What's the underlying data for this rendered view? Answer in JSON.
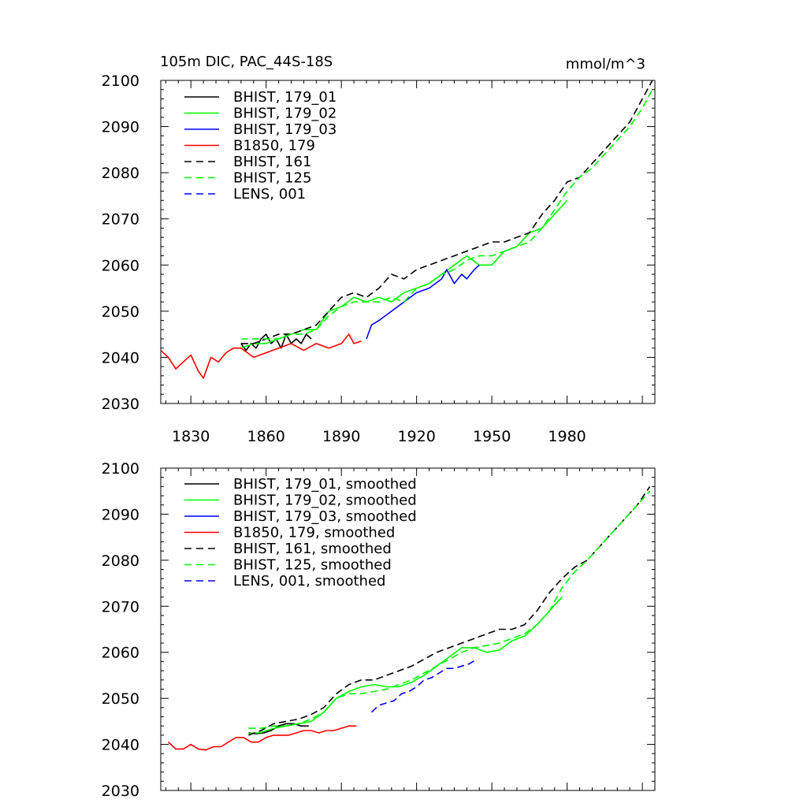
{
  "header": {
    "title": "105m DIC, PAC_44S-18S",
    "units": "mmol/m^3"
  },
  "chart_data": [
    {
      "type": "line",
      "title": "105m DIC, PAC_44S-18S",
      "units_label": "mmol/m^3",
      "xlim": [
        1818,
        2015
      ],
      "ylim": [
        2030,
        2100
      ],
      "xticks": [
        1830,
        1860,
        1890,
        1920,
        1950,
        1980
      ],
      "yticks": [
        2030,
        2040,
        2050,
        2060,
        2070,
        2080,
        2090,
        2100
      ],
      "legend_position": "top-left",
      "series": [
        {
          "name": "BHIST, 179_01",
          "color": "#000000",
          "dash": "solid",
          "x": [
            1850,
            1852,
            1854,
            1856,
            1858,
            1860,
            1862,
            1864,
            1866,
            1868,
            1870,
            1872,
            1874,
            1876,
            1878
          ],
          "y": [
            2043,
            2041.5,
            2043,
            2042,
            2044,
            2045,
            2043,
            2044,
            2042,
            2045,
            2043,
            2044,
            2043,
            2045,
            2044
          ]
        },
        {
          "name": "BHIST, 179_02",
          "color": "#00ff00",
          "dash": "solid",
          "x": [
            1850,
            1855,
            1860,
            1865,
            1870,
            1875,
            1880,
            1885,
            1890,
            1895,
            1900,
            1905,
            1910,
            1915,
            1920,
            1925,
            1930,
            1935,
            1940,
            1945,
            1950,
            1955,
            1960,
            1965,
            1970,
            1975,
            1980
          ],
          "y": [
            2042,
            2043,
            2043,
            2044,
            2045,
            2046,
            2046,
            2050,
            2051,
            2053,
            2052,
            2053,
            2052,
            2054,
            2055,
            2056,
            2058,
            2060,
            2062,
            2060,
            2060,
            2063,
            2064,
            2067,
            2068,
            2071,
            2074
          ]
        },
        {
          "name": "BHIST, 179_03",
          "color": "#0000ff",
          "dash": "solid",
          "x": [
            1900,
            1902,
            1905,
            1910,
            1915,
            1920,
            1925,
            1930,
            1932,
            1935,
            1938,
            1940,
            1943,
            1945
          ],
          "y": [
            2044,
            2047,
            2048,
            2050,
            2052,
            2054,
            2055,
            2057,
            2059,
            2056,
            2058,
            2057,
            2059,
            2060
          ]
        },
        {
          "name": "B1850, 179",
          "color": "#ff0000",
          "dash": "solid",
          "x": [
            1818,
            1821,
            1824,
            1827,
            1830,
            1833,
            1835,
            1838,
            1841,
            1844,
            1847,
            1850,
            1855,
            1860,
            1865,
            1870,
            1875,
            1880,
            1885,
            1890,
            1893,
            1895,
            1898
          ],
          "y": [
            2041.5,
            2040,
            2037.5,
            2039,
            2040.5,
            2037,
            2035.5,
            2040,
            2039,
            2041,
            2042,
            2042,
            2040,
            2041,
            2042,
            2043,
            2041.5,
            2043,
            2042,
            2043,
            2045,
            2043,
            2043.5
          ]
        },
        {
          "name": "BHIST, 161",
          "color": "#000000",
          "dash": "dashed",
          "x": [
            1850,
            1855,
            1860,
            1865,
            1870,
            1875,
            1880,
            1885,
            1890,
            1895,
            1900,
            1905,
            1910,
            1915,
            1920,
            1925,
            1930,
            1935,
            1940,
            1945,
            1950,
            1955,
            1960,
            1965,
            1970,
            1975,
            1980,
            1985,
            1990,
            1995,
            2000,
            2005,
            2010,
            2014
          ],
          "y": [
            2043,
            2043,
            2044,
            2045,
            2045,
            2046,
            2047,
            2050,
            2053,
            2054,
            2053,
            2055,
            2058,
            2057,
            2059,
            2060,
            2061,
            2062,
            2063,
            2064,
            2065,
            2065,
            2066,
            2067,
            2071,
            2074,
            2078,
            2079,
            2082,
            2085,
            2088,
            2091,
            2096,
            2100
          ]
        },
        {
          "name": "BHIST, 125",
          "color": "#00ff00",
          "dash": "dashed",
          "x": [
            1850,
            1855,
            1860,
            1865,
            1870,
            1875,
            1880,
            1885,
            1890,
            1895,
            1900,
            1905,
            1910,
            1915,
            1920,
            1925,
            1930,
            1935,
            1940,
            1945,
            1950,
            1955,
            1960,
            1965,
            1970,
            1975,
            1980,
            1985,
            1990,
            1995,
            2000,
            2005,
            2010,
            2014
          ],
          "y": [
            2044,
            2044,
            2044,
            2044,
            2045,
            2045,
            2046,
            2049,
            2051,
            2052,
            2052,
            2052,
            2053,
            2052,
            2055,
            2056,
            2058,
            2059,
            2061,
            2062,
            2062,
            2063,
            2064,
            2065,
            2068,
            2072,
            2076,
            2079,
            2081,
            2084,
            2087,
            2090,
            2094,
            2098
          ]
        },
        {
          "name": "LENS, 001",
          "color": "#0000ff",
          "dash": "dashed",
          "x": [],
          "y": []
        }
      ]
    },
    {
      "type": "line",
      "xlim": [
        1818,
        2015
      ],
      "ylim": [
        2030,
        2100
      ],
      "yticks": [
        2030,
        2040,
        2050,
        2060,
        2070,
        2080,
        2090,
        2100
      ],
      "legend_position": "top-left",
      "series": [
        {
          "name": "BHIST, 179_01, smoothed",
          "color": "#000000",
          "dash": "solid",
          "x": [
            1853,
            1856,
            1859,
            1862,
            1865,
            1868,
            1871,
            1874,
            1877
          ],
          "y": [
            2042.5,
            2042.3,
            2042.5,
            2043,
            2044,
            2044.5,
            2044.5,
            2044,
            2044
          ]
        },
        {
          "name": "BHIST, 179_02, smoothed",
          "color": "#00ff00",
          "dash": "solid",
          "x": [
            1853,
            1858,
            1863,
            1868,
            1873,
            1878,
            1883,
            1888,
            1893,
            1898,
            1903,
            1908,
            1913,
            1918,
            1923,
            1928,
            1933,
            1938,
            1943,
            1948,
            1953,
            1958,
            1963,
            1968,
            1973,
            1978
          ],
          "y": [
            2042.3,
            2042.6,
            2043.5,
            2044,
            2044.5,
            2045,
            2047,
            2050,
            2051.5,
            2052.5,
            2053,
            2052.5,
            2052.5,
            2053.5,
            2055,
            2057,
            2059,
            2061,
            2061,
            2060,
            2060.5,
            2062.5,
            2063.5,
            2066,
            2069,
            2072
          ]
        },
        {
          "name": "BHIST, 179_03, smoothed",
          "color": "#0000ff",
          "dash": "solid",
          "x": [],
          "y": []
        },
        {
          "name": "B1850, 179, smoothed",
          "color": "#ff0000",
          "dash": "solid",
          "x": [
            1821,
            1824,
            1827,
            1830,
            1833,
            1836,
            1839,
            1842,
            1845,
            1848,
            1851,
            1854,
            1857,
            1860,
            1863,
            1866,
            1869,
            1872,
            1875,
            1878,
            1881,
            1884,
            1887,
            1890,
            1893,
            1896
          ],
          "y": [
            2040.5,
            2039,
            2039,
            2040,
            2039,
            2038.8,
            2039.5,
            2039.5,
            2040.5,
            2041.5,
            2041.5,
            2040.5,
            2040.5,
            2041.5,
            2042,
            2042,
            2042,
            2042.5,
            2043,
            2043,
            2042.5,
            2043,
            2043,
            2043.5,
            2044,
            2044
          ]
        },
        {
          "name": "BHIST, 161, smoothed",
          "color": "#000000",
          "dash": "dashed",
          "x": [
            1853,
            1858,
            1863,
            1868,
            1873,
            1878,
            1883,
            1888,
            1893,
            1898,
            1903,
            1908,
            1913,
            1918,
            1923,
            1928,
            1933,
            1938,
            1943,
            1948,
            1953,
            1958,
            1963,
            1968,
            1973,
            1978,
            1983,
            1988,
            1993,
            1998,
            2003,
            2008,
            2013
          ],
          "y": [
            2042,
            2043,
            2044.5,
            2045,
            2045.5,
            2046.5,
            2048,
            2051,
            2053,
            2054,
            2054,
            2055,
            2056,
            2057,
            2058.5,
            2060,
            2061,
            2062,
            2063,
            2064,
            2065,
            2065,
            2066,
            2069,
            2073,
            2076,
            2078.5,
            2080,
            2083,
            2086,
            2089,
            2092,
            2096
          ]
        },
        {
          "name": "BHIST, 125, smoothed",
          "color": "#00ff00",
          "dash": "dashed",
          "x": [
            1853,
            1858,
            1863,
            1868,
            1873,
            1878,
            1883,
            1888,
            1893,
            1898,
            1903,
            1908,
            1913,
            1918,
            1923,
            1928,
            1933,
            1938,
            1943,
            1948,
            1953,
            1958,
            1963,
            1968,
            1973,
            1978,
            1983,
            1988,
            1993,
            1998,
            2003,
            2008,
            2013
          ],
          "y": [
            2043.5,
            2043.5,
            2044,
            2044,
            2044.5,
            2045.5,
            2047,
            2050,
            2051,
            2051,
            2051.5,
            2052,
            2053,
            2054,
            2055.5,
            2057,
            2058.5,
            2060,
            2061,
            2061.5,
            2062,
            2063,
            2064,
            2066,
            2069,
            2074,
            2077.5,
            2080,
            2083,
            2086,
            2089,
            2092,
            2095
          ]
        },
        {
          "name": "LENS, 001, smoothed",
          "color": "#0000ff",
          "dash": "dashed",
          "x": [
            1902,
            1905,
            1908,
            1911,
            1914,
            1917,
            1920,
            1923,
            1926,
            1929,
            1932,
            1935,
            1938,
            1941,
            1944
          ],
          "y": [
            2047,
            2048.5,
            2049,
            2049.5,
            2051,
            2051.5,
            2052.5,
            2054,
            2054.5,
            2055.5,
            2056.5,
            2056.5,
            2057,
            2057.5,
            2058.5
          ]
        }
      ]
    }
  ]
}
